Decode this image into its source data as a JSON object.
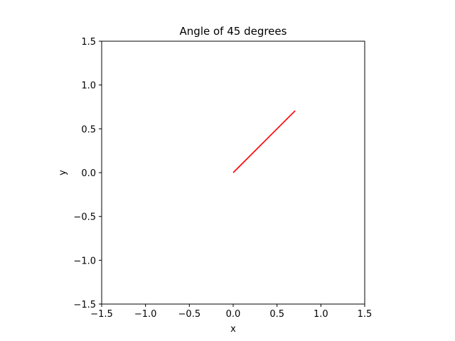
{
  "chart_data": {
    "type": "line",
    "title": "Angle of 45 degrees",
    "xlabel": "x",
    "ylabel": "y",
    "xlim": [
      -1.5,
      1.5
    ],
    "ylim": [
      -1.5,
      1.5
    ],
    "x_ticks": [
      -1.5,
      -1.0,
      -0.5,
      0.0,
      0.5,
      1.0,
      1.5
    ],
    "y_ticks": [
      -1.5,
      -1.0,
      -0.5,
      0.0,
      0.5,
      1.0,
      1.5
    ],
    "x_tick_labels": [
      "−1.5",
      "−1.0",
      "−0.5",
      "0.0",
      "0.5",
      "1.0",
      "1.5"
    ],
    "y_tick_labels": [
      "−1.5",
      "−1.0",
      "−0.5",
      "0.0",
      "0.5",
      "1.0",
      "1.5"
    ],
    "grid": false,
    "series": [
      {
        "x": [
          0.0,
          0.7071
        ],
        "y": [
          0.0,
          0.7071
        ],
        "color": "#ff0000"
      }
    ]
  }
}
